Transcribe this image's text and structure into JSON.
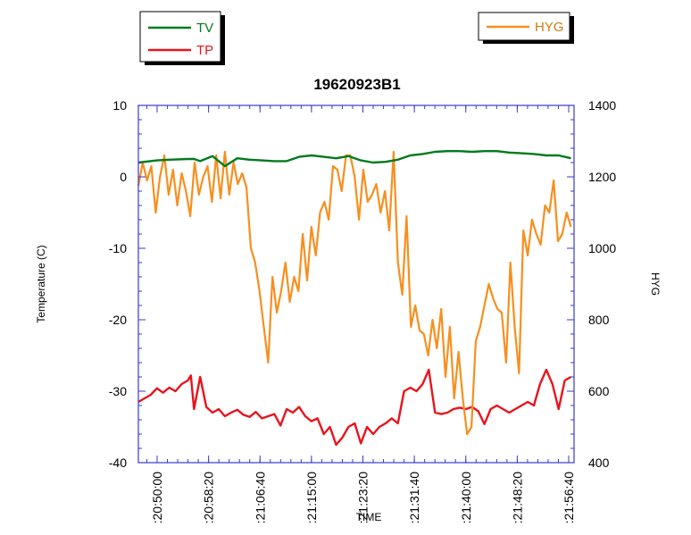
{
  "chart_data": {
    "type": "line",
    "title": "19620923B1",
    "xlabel": "TIME",
    "ylabel_left": "Temperature (C)",
    "ylabel_right": "HYG",
    "ylim_left": [
      -40,
      10
    ],
    "ylim_right": [
      400,
      1400
    ],
    "y_ticks_left": [
      "10",
      "0",
      "-10",
      "-20",
      "-30",
      "-40"
    ],
    "y_ticks_right": [
      "1400",
      "1200",
      "1000",
      "800",
      "600",
      "400"
    ],
    "x_ticks": [
      ":20:50:00",
      ":20:58:20",
      ":21:06:40",
      ":21:15:00",
      ":21:23:20",
      ":21:31:40",
      ":21:40:00",
      ":21:48:20",
      ":21:56:40"
    ],
    "x_range_minutes": [
      0,
      70.5
    ],
    "grid": false,
    "legend_left": [
      "TV",
      "TP"
    ],
    "legend_right": [
      "HYG"
    ],
    "series": [
      {
        "name": "TV",
        "axis": "left",
        "color": "#007a1e",
        "x": [
          0,
          3,
          5,
          8,
          9,
          10,
          12,
          14,
          16,
          18,
          20,
          22,
          24,
          26,
          28,
          30,
          32,
          34,
          36,
          38,
          40,
          42,
          44,
          46,
          48,
          50,
          52,
          54,
          56,
          58,
          60,
          62,
          64,
          66,
          68,
          70
        ],
        "y": [
          2.0,
          2.3,
          2.4,
          2.5,
          2.5,
          2.2,
          2.9,
          1.5,
          2.6,
          2.4,
          2.3,
          2.2,
          2.2,
          2.8,
          3.0,
          2.8,
          2.6,
          2.9,
          2.3,
          2.0,
          2.1,
          2.4,
          3.0,
          3.2,
          3.5,
          3.6,
          3.6,
          3.5,
          3.6,
          3.6,
          3.4,
          3.3,
          3.2,
          3.0,
          3.0,
          2.6
        ]
      },
      {
        "name": "TP",
        "axis": "left",
        "color": "#e8141c",
        "x": [
          0,
          1,
          2,
          3,
          4,
          5,
          6,
          7,
          8,
          8.5,
          9,
          10,
          11,
          12,
          13,
          14,
          15,
          16,
          17,
          18,
          19,
          20,
          21,
          22,
          23,
          24,
          25,
          26,
          27,
          28,
          29,
          30,
          31,
          32,
          33,
          34,
          35,
          36,
          37,
          38,
          39,
          40,
          41,
          42,
          43,
          44,
          45,
          46,
          47,
          48,
          49,
          50,
          51,
          52,
          53,
          54,
          55,
          56,
          57,
          58,
          59,
          60,
          61,
          62,
          63,
          64,
          65,
          66,
          67,
          68,
          69,
          70
        ],
        "y": [
          -31.5,
          -31.0,
          -30.5,
          -29.6,
          -30.2,
          -29.5,
          -30.0,
          -29.0,
          -28.5,
          -27.8,
          -32.5,
          -28.0,
          -32.2,
          -33.0,
          -32.5,
          -33.5,
          -33.0,
          -32.6,
          -33.3,
          -33.6,
          -32.9,
          -33.8,
          -33.5,
          -33.2,
          -34.8,
          -32.5,
          -33.0,
          -32.2,
          -33.5,
          -34.2,
          -33.8,
          -36.0,
          -35.0,
          -37.5,
          -36.5,
          -35.0,
          -34.5,
          -37.3,
          -35.0,
          -36.0,
          -35.0,
          -34.5,
          -33.8,
          -34.5,
          -30.0,
          -29.5,
          -30.0,
          -29.0,
          -27.0,
          -33.0,
          -33.2,
          -33.0,
          -32.5,
          -32.3,
          -32.5,
          -32.2,
          -32.8,
          -34.6,
          -32.5,
          -32.0,
          -32.5,
          -33.0,
          -32.5,
          -32.0,
          -31.5,
          -32.0,
          -29.0,
          -27.0,
          -29.0,
          -32.5,
          -28.5,
          -28.0
        ]
      },
      {
        "name": "HYG",
        "axis": "right",
        "color": "#f78f1e",
        "x": [
          0,
          0.7,
          1.4,
          2.1,
          2.8,
          3.5,
          4.2,
          4.9,
          5.6,
          6.3,
          7.0,
          7.7,
          8.4,
          9.1,
          9.8,
          10.5,
          11.2,
          11.9,
          12.6,
          13.3,
          14.0,
          14.7,
          15.4,
          16.1,
          16.8,
          17.5,
          18.2,
          18.9,
          19.6,
          20.3,
          21.0,
          21.7,
          22.4,
          23.1,
          23.8,
          24.5,
          25.2,
          25.9,
          26.6,
          27.3,
          28.0,
          28.7,
          29.4,
          30.1,
          30.8,
          31.5,
          32.2,
          32.9,
          33.6,
          34.3,
          35.0,
          35.7,
          36.4,
          37.1,
          37.8,
          38.5,
          39.2,
          39.9,
          40.6,
          41.3,
          42.0,
          42.7,
          43.4,
          44.1,
          44.8,
          45.5,
          46.2,
          46.9,
          47.6,
          48.3,
          49.0,
          49.7,
          50.4,
          51.1,
          51.8,
          52.5,
          53.2,
          53.9,
          54.6,
          55.3,
          56.0,
          56.7,
          57.4,
          58.1,
          58.8,
          59.5,
          60.2,
          60.9,
          61.6,
          62.3,
          63.0,
          63.7,
          64.4,
          65.1,
          65.8,
          66.5,
          67.2,
          67.9,
          68.6,
          69.3,
          70.0
        ],
        "y": [
          1175,
          1240,
          1190,
          1230,
          1100,
          1200,
          1260,
          1150,
          1220,
          1120,
          1210,
          1160,
          1090,
          1240,
          1150,
          1200,
          1230,
          1130,
          1260,
          1140,
          1270,
          1150,
          1240,
          1180,
          1210,
          1170,
          1000,
          960,
          880,
          780,
          680,
          920,
          820,
          880,
          960,
          850,
          920,
          880,
          1040,
          910,
          1060,
          980,
          1100,
          1130,
          1080,
          1230,
          1220,
          1160,
          1260,
          1260,
          1200,
          1080,
          1220,
          1130,
          1150,
          1180,
          1100,
          1160,
          1050,
          1270,
          960,
          870,
          1090,
          780,
          840,
          770,
          760,
          700,
          800,
          720,
          830,
          640,
          780,
          580,
          710,
          580,
          480,
          500,
          740,
          780,
          840,
          900,
          860,
          830,
          820,
          680,
          960,
          780,
          650,
          1050,
          980,
          1080,
          1040,
          1010,
          1120,
          1100,
          1190,
          1020,
          1040,
          1100,
          1060
        ]
      }
    ]
  }
}
